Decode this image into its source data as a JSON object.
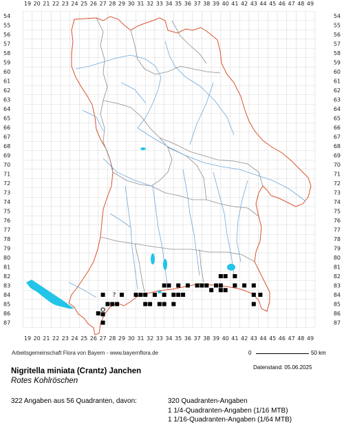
{
  "map": {
    "x_ticks": [
      "19",
      "20",
      "21",
      "22",
      "23",
      "24",
      "25",
      "26",
      "27",
      "28",
      "29",
      "30",
      "31",
      "32",
      "33",
      "34",
      "35",
      "36",
      "37",
      "38",
      "39",
      "40",
      "41",
      "42",
      "43",
      "44",
      "45",
      "46",
      "47",
      "48",
      "49"
    ],
    "y_ticks": [
      "54",
      "55",
      "56",
      "57",
      "58",
      "59",
      "60",
      "61",
      "62",
      "63",
      "64",
      "65",
      "66",
      "67",
      "68",
      "69",
      "70",
      "71",
      "72",
      "73",
      "74",
      "75",
      "76",
      "77",
      "78",
      "79",
      "80",
      "81",
      "82",
      "83",
      "84",
      "85",
      "86",
      "87"
    ],
    "colors": {
      "grid": "#d8d8d8",
      "border": "#d9512c",
      "districts": "#8c8c8c",
      "rivers": "#6fa8dc",
      "lakes": "#22c4e8",
      "occurrence": "#000000"
    },
    "occurrences": [
      {
        "x": 27,
        "y": 84,
        "mark": "square"
      },
      {
        "x": 28.2,
        "y": 84,
        "mark": "question"
      },
      {
        "x": 29,
        "y": 84,
        "mark": "square"
      },
      {
        "x": 30.5,
        "y": 84,
        "mark": "square"
      },
      {
        "x": 31,
        "y": 84,
        "mark": "square"
      },
      {
        "x": 31.5,
        "y": 84,
        "mark": "square"
      },
      {
        "x": 32.5,
        "y": 84,
        "mark": "square"
      },
      {
        "x": 33.5,
        "y": 84,
        "mark": "square"
      },
      {
        "x": 34.5,
        "y": 84,
        "mark": "square"
      },
      {
        "x": 35,
        "y": 84,
        "mark": "square"
      },
      {
        "x": 35.5,
        "y": 84,
        "mark": "square"
      },
      {
        "x": 28.5,
        "y": 85,
        "mark": "square"
      },
      {
        "x": 31.5,
        "y": 85,
        "mark": "square"
      },
      {
        "x": 33.5,
        "y": 85,
        "mark": "square"
      },
      {
        "x": 34.5,
        "y": 85,
        "mark": "square"
      },
      {
        "x": 27.5,
        "y": 85,
        "mark": "square"
      },
      {
        "x": 28,
        "y": 85,
        "mark": "square"
      },
      {
        "x": 32,
        "y": 85,
        "mark": "square"
      },
      {
        "x": 33,
        "y": 85,
        "mark": "square"
      },
      {
        "x": 26.5,
        "y": 86,
        "mark": "square"
      },
      {
        "x": 27,
        "y": 85.6,
        "mark": "circle"
      },
      {
        "x": 27,
        "y": 86.1,
        "mark": "square"
      },
      {
        "x": 27,
        "y": 87,
        "mark": "square"
      },
      {
        "x": 33.5,
        "y": 83,
        "mark": "square"
      },
      {
        "x": 34,
        "y": 83,
        "mark": "square"
      },
      {
        "x": 35,
        "y": 83,
        "mark": "square"
      },
      {
        "x": 36,
        "y": 83,
        "mark": "square"
      },
      {
        "x": 37,
        "y": 83,
        "mark": "square"
      },
      {
        "x": 37.5,
        "y": 83,
        "mark": "square"
      },
      {
        "x": 38,
        "y": 83,
        "mark": "square"
      },
      {
        "x": 39,
        "y": 83,
        "mark": "square"
      },
      {
        "x": 39.5,
        "y": 83,
        "mark": "square"
      },
      {
        "x": 41,
        "y": 83,
        "mark": "square"
      },
      {
        "x": 43,
        "y": 83,
        "mark": "square"
      },
      {
        "x": 39.5,
        "y": 82,
        "mark": "square"
      },
      {
        "x": 40,
        "y": 82,
        "mark": "square"
      },
      {
        "x": 41,
        "y": 82,
        "mark": "square"
      },
      {
        "x": 42,
        "y": 83,
        "mark": "square"
      },
      {
        "x": 43,
        "y": 84,
        "mark": "square"
      },
      {
        "x": 43.7,
        "y": 84,
        "mark": "square"
      },
      {
        "x": 43,
        "y": 85,
        "mark": "square"
      },
      {
        "x": 39.5,
        "y": 83.5,
        "mark": "square"
      },
      {
        "x": 40,
        "y": 83.5,
        "mark": "square"
      },
      {
        "x": 38.5,
        "y": 83.5,
        "mark": "square"
      }
    ]
  },
  "footer": {
    "credit": "Arbeitsgemeinschaft Flora von Bayern - www.bayernflora.de",
    "scale_zero": "0",
    "scale_end": "50 km",
    "date": "Datenstand: 05.06.2025",
    "scientific_name": "Nigritella miniata (Crantz) Janchen",
    "common_name": "Rotes Kohlröschen",
    "summary": "322 Angaben aus 56 Quadranten, davon:",
    "breakdown_1": "320 Quadranten-Angaben",
    "breakdown_2": "1 1/4-Quadranten-Angaben (1/16 MTB)",
    "breakdown_3": "1 1/16-Quadranten-Angaben (1/64 MTB)"
  }
}
